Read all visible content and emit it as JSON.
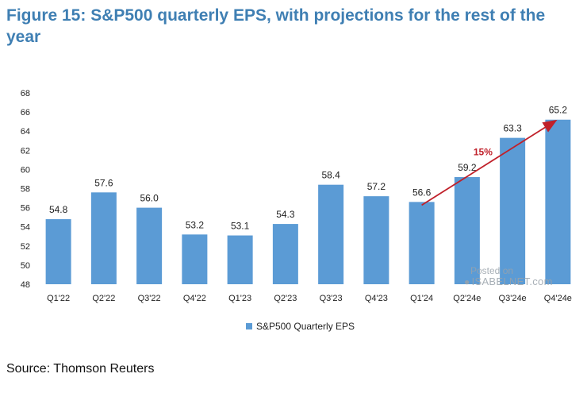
{
  "title": "Figure 15: S&P500 quarterly EPS, with projections for the rest of the year",
  "source": "Source: Thomson Reuters",
  "watermark": {
    "line1": "Posted on",
    "line2": "ISABELNET.com"
  },
  "colors": {
    "bar": "#5b9bd5",
    "title": "#3f7fb3",
    "arrow": "#c0202a",
    "annotation": "#c0202a"
  },
  "chart_data": {
    "type": "bar",
    "title": "Figure 15: S&P500 quarterly EPS, with projections for the rest of the year",
    "categories": [
      "Q1'22",
      "Q2'22",
      "Q3'22",
      "Q4'22",
      "Q1'23",
      "Q2'23",
      "Q3'23",
      "Q4'23",
      "Q1'24",
      "Q2'24e",
      "Q3'24e",
      "Q4'24e"
    ],
    "series": [
      {
        "name": "S&P500 Quarterly EPS",
        "values": [
          54.8,
          57.6,
          56.0,
          53.2,
          53.1,
          54.3,
          58.4,
          57.2,
          56.6,
          59.2,
          63.3,
          65.2
        ]
      }
    ],
    "value_labels": [
      "54.8",
      "57.6",
      "56.0",
      "53.2",
      "53.1",
      "54.3",
      "58.4",
      "57.2",
      "56.6",
      "59.2",
      "63.3",
      "65.2"
    ],
    "ylim": [
      48,
      68
    ],
    "yticks": [
      48,
      50,
      52,
      54,
      56,
      58,
      60,
      62,
      64,
      66,
      68
    ],
    "xlabel": "",
    "ylabel": "",
    "legend": {
      "label": "S&P500 Quarterly EPS",
      "position": "bottom-center"
    },
    "annotation": {
      "text": "15%",
      "from_category": "Q1'24",
      "to_category": "Q4'24e"
    },
    "grid": false
  }
}
